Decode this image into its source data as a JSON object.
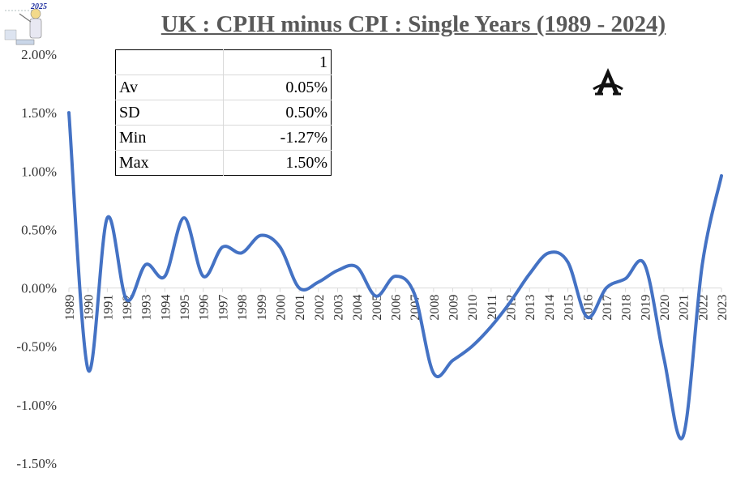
{
  "title": "UK : CPIH minus CPI : Single Years (1989 - 2024)",
  "logo": {
    "year_label": "2025"
  },
  "stats_table": {
    "header": "1",
    "rows": [
      {
        "label": "Av",
        "value": "0.05%"
      },
      {
        "label": "SD",
        "value": "0.50%"
      },
      {
        "label": "Min",
        "value": "-1.27%"
      },
      {
        "label": "Max",
        "value": "1.50%"
      }
    ]
  },
  "chart_data": {
    "type": "line",
    "title": "UK : CPIH minus CPI : Single Years (1989 - 2024)",
    "xlabel": "",
    "ylabel": "",
    "ylim": [
      -1.5,
      2.0
    ],
    "yticks": [
      -1.5,
      -1.0,
      -0.5,
      0.0,
      0.5,
      1.0,
      1.5,
      2.0
    ],
    "ytick_labels": [
      "-1.50%",
      "-1.00%",
      "-0.50%",
      "0.00%",
      "0.50%",
      "1.00%",
      "1.50%",
      "2.00%"
    ],
    "grid": false,
    "series_color": "#4472c4",
    "categories": [
      "1989",
      "1990",
      "1991",
      "1992",
      "1993",
      "1994",
      "1995",
      "1996",
      "1997",
      "1998",
      "1999",
      "2000",
      "2001",
      "2002",
      "2003",
      "2004",
      "2005",
      "2006",
      "2007",
      "2008",
      "2009",
      "2010",
      "2011",
      "2012",
      "2013",
      "2014",
      "2015",
      "2016",
      "2017",
      "2018",
      "2019",
      "2020",
      "2021",
      "2022",
      "2023"
    ],
    "series": [
      {
        "values": [
          1.5,
          -0.7,
          0.6,
          -0.1,
          0.2,
          0.1,
          0.6,
          0.1,
          0.35,
          0.3,
          0.45,
          0.35,
          0.0,
          0.05,
          0.15,
          0.18,
          -0.07,
          0.1,
          -0.05,
          -0.73,
          -0.62,
          -0.5,
          -0.33,
          -0.12,
          0.12,
          0.3,
          0.22,
          -0.25,
          0.0,
          0.08,
          0.2,
          -0.6,
          -1.27,
          0.2,
          0.96
        ]
      }
    ]
  }
}
